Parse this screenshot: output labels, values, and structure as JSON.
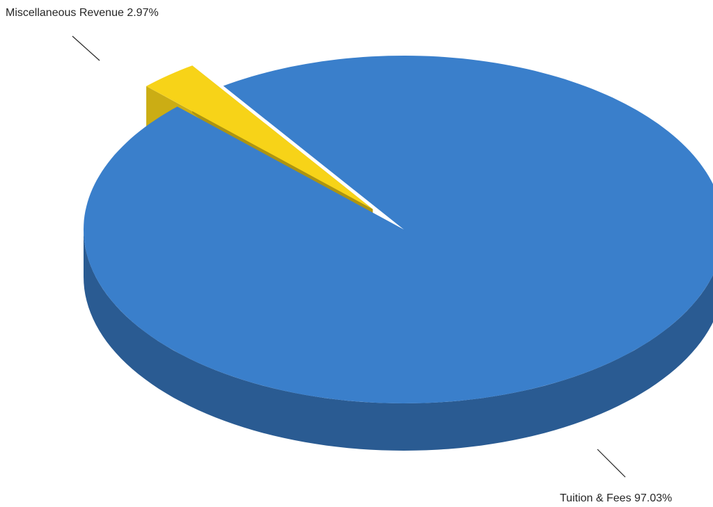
{
  "chart_data": {
    "type": "pie",
    "style": "3d-exploded",
    "slices": [
      {
        "label": "Miscellaneous Revenue",
        "value": 2.97,
        "display": "Miscellaneous Revenue 2.97%",
        "color": "#F7D318",
        "exploded": true
      },
      {
        "label": "Tuition & Fees",
        "value": 97.03,
        "display": "Tuition & Fees 97.03%",
        "color": "#3A7FCB",
        "exploded": false
      }
    ],
    "title": ""
  }
}
